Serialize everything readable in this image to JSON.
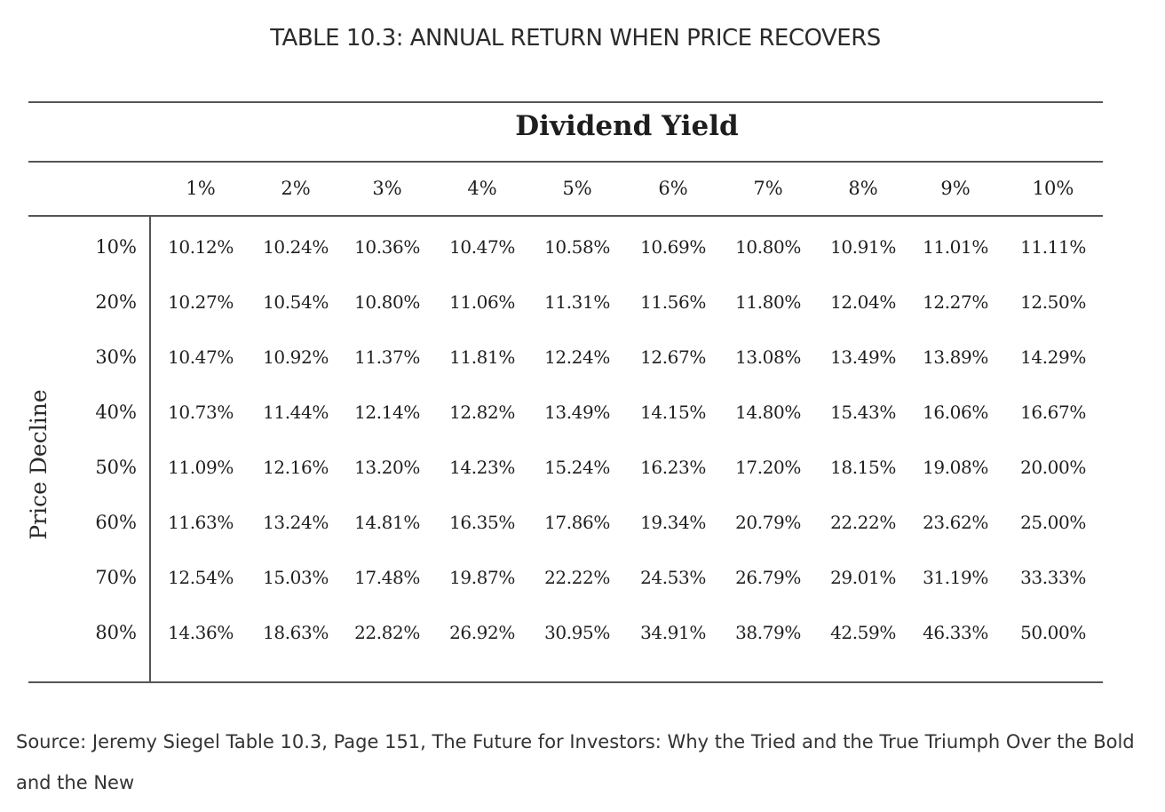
{
  "title": "TABLE 10.3: ANNUAL RETURN WHEN PRICE RECOVERS",
  "source_note": "Source: Jeremy Siegel Table 10.3, Page 151, The Future for Investors: Why the Tried and the True Triumph Over the Bold and the New",
  "chart_data": {
    "type": "table",
    "title": "TABLE 10.3: ANNUAL RETURN WHEN PRICE RECOVERS",
    "column_group_label": "Dividend Yield",
    "row_group_label": "Price Decline",
    "columns": [
      "1%",
      "2%",
      "3%",
      "4%",
      "5%",
      "6%",
      "7%",
      "8%",
      "9%",
      "10%"
    ],
    "rows": [
      {
        "label": "10%",
        "values": [
          "10.12%",
          "10.24%",
          "10.36%",
          "10.47%",
          "10.58%",
          "10.69%",
          "10.80%",
          "10.91%",
          "11.01%",
          "11.11%"
        ]
      },
      {
        "label": "20%",
        "values": [
          "10.27%",
          "10.54%",
          "10.80%",
          "11.06%",
          "11.31%",
          "11.56%",
          "11.80%",
          "12.04%",
          "12.27%",
          "12.50%"
        ]
      },
      {
        "label": "30%",
        "values": [
          "10.47%",
          "10.92%",
          "11.37%",
          "11.81%",
          "12.24%",
          "12.67%",
          "13.08%",
          "13.49%",
          "13.89%",
          "14.29%"
        ]
      },
      {
        "label": "40%",
        "values": [
          "10.73%",
          "11.44%",
          "12.14%",
          "12.82%",
          "13.49%",
          "14.15%",
          "14.80%",
          "15.43%",
          "16.06%",
          "16.67%"
        ]
      },
      {
        "label": "50%",
        "values": [
          "11.09%",
          "12.16%",
          "13.20%",
          "14.23%",
          "15.24%",
          "16.23%",
          "17.20%",
          "18.15%",
          "19.08%",
          "20.00%"
        ]
      },
      {
        "label": "60%",
        "values": [
          "11.63%",
          "13.24%",
          "14.81%",
          "16.35%",
          "17.86%",
          "19.34%",
          "20.79%",
          "22.22%",
          "23.62%",
          "25.00%"
        ]
      },
      {
        "label": "70%",
        "values": [
          "12.54%",
          "15.03%",
          "17.48%",
          "19.87%",
          "22.22%",
          "24.53%",
          "26.79%",
          "29.01%",
          "31.19%",
          "33.33%"
        ]
      },
      {
        "label": "80%",
        "values": [
          "14.36%",
          "18.63%",
          "22.82%",
          "26.92%",
          "30.95%",
          "34.91%",
          "38.79%",
          "42.59%",
          "46.33%",
          "50.00%"
        ]
      }
    ]
  }
}
